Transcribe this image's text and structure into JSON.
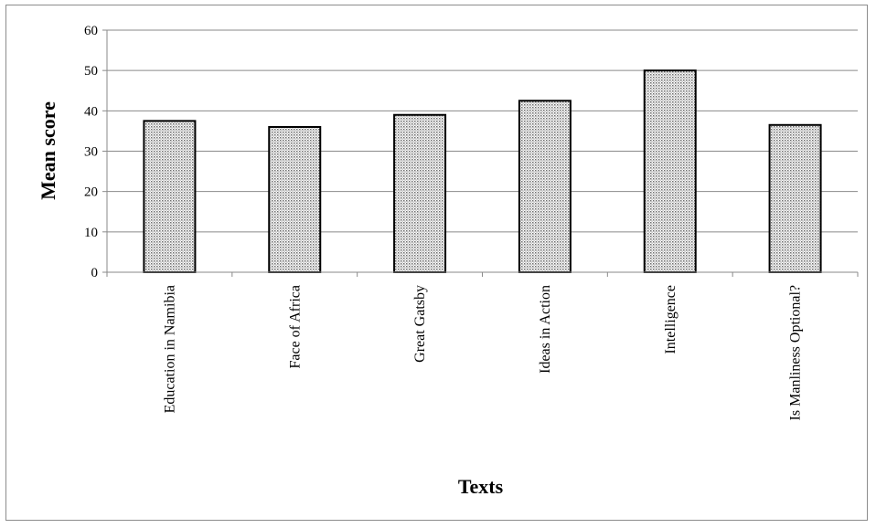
{
  "chart_data": {
    "type": "bar",
    "title": "",
    "xlabel": "Texts",
    "ylabel": "Mean score",
    "ylim": [
      0,
      60
    ],
    "yticks": [
      0,
      10,
      20,
      30,
      40,
      50,
      60
    ],
    "grid": true,
    "categories": [
      "Education in Namibia",
      "Face of Africa",
      "Great Gatsby",
      "Ideas in Action",
      "Intelligence",
      "Is Manliness Optional?"
    ],
    "values": [
      37.5,
      36,
      39,
      42.5,
      50,
      36.5
    ],
    "bar_fill": "dotted-gray",
    "bar_stroke": "#000000"
  }
}
